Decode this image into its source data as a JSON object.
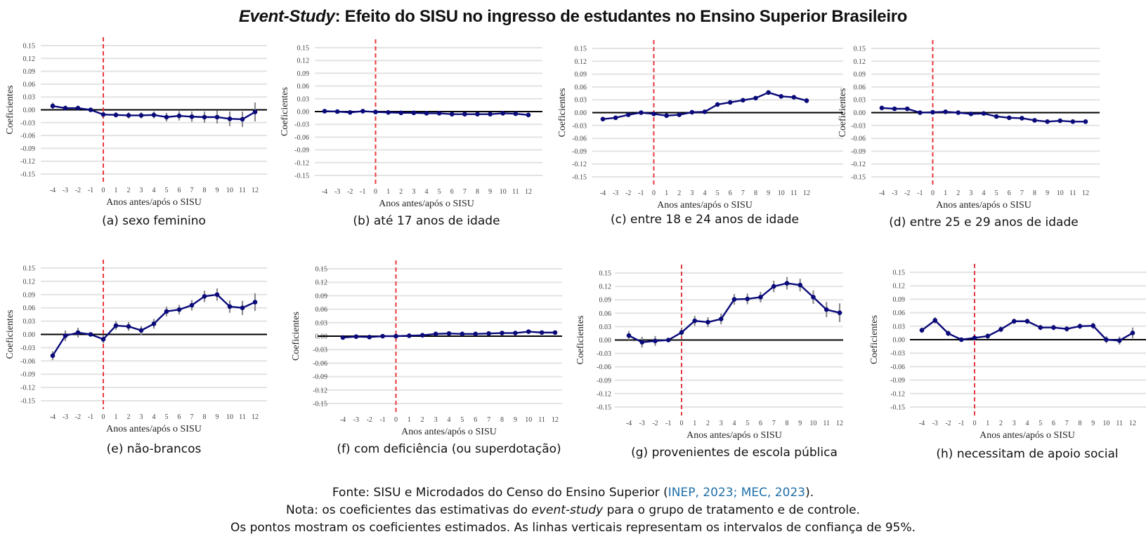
{
  "title": {
    "italic_part": "Event-Study",
    "rest": ": Efeito do SISU no ingresso de estudantes no Ensino Superior Brasileiro"
  },
  "footer": {
    "source_prefix": "Fonte: SISU e Microdados do Censo do Ensino Superior (",
    "source_cite": "INEP, 2023; MEC, 2023",
    "source_suffix": ").",
    "note_prefix": "Nota: os coeficientes das estimativas do ",
    "note_italic": "event-study",
    "note_suffix": " para o grupo de tratamento e de controle.",
    "note2": "Os pontos mostram os coeficientes estimados. As linhas verticais representam os intervalos de confiança de 95%."
  },
  "colors": {
    "series": "#0a0a7a",
    "ci": "#8c8c8c",
    "event_line": "#e8383d",
    "zero_line": "#000000",
    "grid": "#e3e3e3",
    "cite": "#1f6fa8"
  },
  "chart_data": [
    {
      "id": "a",
      "type": "line",
      "caption": "(a) sexo feminino",
      "xlabel": "Anos antes/após o SISU",
      "ylabel": "Coeficientes",
      "x": [
        -4,
        -3,
        -2,
        -1,
        0,
        1,
        2,
        3,
        4,
        5,
        6,
        7,
        8,
        9,
        10,
        11,
        12
      ],
      "y": [
        0.009,
        0.004,
        0.004,
        0.0,
        -0.011,
        -0.012,
        -0.013,
        -0.013,
        -0.012,
        -0.017,
        -0.014,
        -0.016,
        -0.017,
        -0.017,
        -0.021,
        -0.022,
        -0.005
      ],
      "ci": [
        0.008,
        0.006,
        0.006,
        0.003,
        0.006,
        0.006,
        0.007,
        0.007,
        0.008,
        0.01,
        0.011,
        0.012,
        0.013,
        0.015,
        0.017,
        0.018,
        0.022
      ],
      "yticks": [
        "0.15",
        "0.12",
        "0.09",
        "0.06",
        "0.03",
        "0.00",
        "-0.03",
        "-0.06",
        "-0.09",
        "-0.12",
        "-0.15"
      ],
      "ylim": [
        -0.15,
        0.15
      ],
      "event_x": 0,
      "grid": true
    },
    {
      "id": "b",
      "type": "line",
      "caption": "(b) até 17 anos de idade",
      "xlabel": "Anos antes/após o SISU",
      "ylabel": "Coeficientes",
      "x": [
        -4,
        -3,
        -2,
        -1,
        0,
        1,
        2,
        3,
        4,
        5,
        6,
        7,
        8,
        9,
        10,
        11,
        12
      ],
      "y": [
        0.001,
        0.0,
        -0.002,
        0.001,
        -0.001,
        -0.002,
        -0.003,
        -0.003,
        -0.004,
        -0.004,
        -0.006,
        -0.006,
        -0.006,
        -0.006,
        -0.004,
        -0.005,
        -0.008
      ],
      "ci": [
        0.002,
        0.002,
        0.002,
        0.002,
        0.002,
        0.002,
        0.002,
        0.002,
        0.002,
        0.002,
        0.002,
        0.002,
        0.002,
        0.002,
        0.002,
        0.002,
        0.003
      ],
      "yticks": [
        "0.15",
        "0.12",
        "0.09",
        "0.06",
        "0.03",
        "0.00",
        "-0.03",
        "-0.06",
        "-0.09",
        "-0.12",
        "-0.15"
      ],
      "ylim": [
        -0.15,
        0.15
      ],
      "event_x": 0,
      "grid": true
    },
    {
      "id": "c",
      "type": "line",
      "caption": "(c) entre 18 e 24 anos de idade",
      "xlabel": "Anos antes/após o SISU",
      "ylabel": "Coeficientes",
      "x": [
        -4,
        -3,
        -2,
        -1,
        0,
        1,
        2,
        3,
        4,
        5,
        6,
        7,
        8,
        9,
        10,
        11,
        12
      ],
      "y": [
        -0.015,
        -0.012,
        -0.005,
        0.0,
        -0.003,
        -0.007,
        -0.005,
        0.001,
        0.002,
        0.019,
        0.024,
        0.029,
        0.034,
        0.047,
        0.038,
        0.036,
        0.028
      ],
      "ci": [
        0.003,
        0.003,
        0.003,
        0.002,
        0.003,
        0.003,
        0.003,
        0.003,
        0.003,
        0.003,
        0.003,
        0.004,
        0.004,
        0.004,
        0.004,
        0.005,
        0.006
      ],
      "yticks": [
        "0.15",
        "0.12",
        "0.09",
        "0.06",
        "0.03",
        "0.00",
        "-0.03",
        "-0.06",
        "-0.09",
        "-0.12",
        "-0.15"
      ],
      "ylim": [
        -0.15,
        0.15
      ],
      "event_x": 0,
      "grid": true
    },
    {
      "id": "d",
      "type": "line",
      "caption": "(d) entre 25 e 29 anos de idade",
      "xlabel": "Anos antes/após o SISU",
      "ylabel": "Coeficientes",
      "x": [
        -4,
        -3,
        -2,
        -1,
        0,
        1,
        2,
        3,
        4,
        5,
        6,
        7,
        8,
        9,
        10,
        11,
        12
      ],
      "y": [
        0.011,
        0.009,
        0.009,
        0.0,
        0.001,
        0.002,
        0.0,
        -0.003,
        -0.002,
        -0.009,
        -0.012,
        -0.013,
        -0.018,
        -0.021,
        -0.019,
        -0.021,
        -0.021
      ],
      "ci": [
        0.002,
        0.002,
        0.002,
        0.002,
        0.002,
        0.002,
        0.002,
        0.002,
        0.002,
        0.002,
        0.002,
        0.002,
        0.002,
        0.002,
        0.002,
        0.002,
        0.003
      ],
      "yticks": [
        "0.15",
        "0.12",
        "0.09",
        "0.06",
        "0.03",
        "0.00",
        "-0.03",
        "-0.06",
        "-0.09",
        "-0.12",
        "-0.15"
      ],
      "ylim": [
        -0.15,
        0.15
      ],
      "event_x": 0,
      "grid": true
    },
    {
      "id": "e",
      "type": "line",
      "caption": "(e) não-brancos",
      "xlabel": "Anos antes/após o SISU",
      "ylabel": "Coeficientes",
      "x": [
        -4,
        -3,
        -2,
        -1,
        0,
        1,
        2,
        3,
        4,
        5,
        6,
        7,
        8,
        9,
        10,
        11,
        12
      ],
      "y": [
        -0.048,
        -0.003,
        0.004,
        0.0,
        -0.011,
        0.02,
        0.018,
        0.009,
        0.024,
        0.052,
        0.056,
        0.066,
        0.086,
        0.09,
        0.063,
        0.06,
        0.073
      ],
      "ci": [
        0.01,
        0.012,
        0.011,
        0.004,
        0.009,
        0.01,
        0.01,
        0.01,
        0.011,
        0.011,
        0.011,
        0.012,
        0.013,
        0.014,
        0.014,
        0.016,
        0.02
      ],
      "yticks": [
        "0.15",
        "0.12",
        "0.09",
        "0.06",
        "0.03",
        "0.00",
        "-0.03",
        "-0.06",
        "-0.09",
        "-0.12",
        "-0.15"
      ],
      "ylim": [
        -0.15,
        0.15
      ],
      "event_x": 0,
      "grid": true
    },
    {
      "id": "f",
      "type": "line",
      "caption": "(f) com deficiência (ou superdotação)",
      "xlabel": "Anos antes/após o SISU",
      "ylabel": "Coeficientes",
      "x": [
        -4,
        -3,
        -2,
        -1,
        0,
        1,
        2,
        3,
        4,
        5,
        6,
        7,
        8,
        9,
        10,
        11,
        12
      ],
      "y": [
        -0.003,
        -0.001,
        -0.002,
        0.0,
        0.0,
        0.001,
        0.002,
        0.005,
        0.006,
        0.005,
        0.005,
        0.006,
        0.007,
        0.007,
        0.01,
        0.008,
        0.008
      ],
      "ci": [
        0.001,
        0.001,
        0.001,
        0.001,
        0.001,
        0.001,
        0.001,
        0.001,
        0.001,
        0.001,
        0.001,
        0.001,
        0.001,
        0.001,
        0.001,
        0.001,
        0.001
      ],
      "yticks": [
        "0.15",
        "0.12",
        "0.09",
        "0.06",
        "0.03",
        "0.00",
        "-0.03",
        "-0.06",
        "-0.09",
        "-0.12",
        "-0.15"
      ],
      "ylim": [
        -0.15,
        0.15
      ],
      "event_x": 0,
      "grid": true
    },
    {
      "id": "g",
      "type": "line",
      "caption": "(g) provenientes de escola pública",
      "xlabel": "Anos antes/após o SISU",
      "ylabel": "Coeficientes",
      "x": [
        -4,
        -3,
        -2,
        -1,
        0,
        1,
        2,
        3,
        4,
        5,
        6,
        7,
        8,
        9,
        10,
        11,
        12
      ],
      "y": [
        0.01,
        -0.005,
        -0.002,
        0.0,
        0.017,
        0.043,
        0.04,
        0.047,
        0.091,
        0.092,
        0.096,
        0.12,
        0.127,
        0.123,
        0.096,
        0.068,
        0.061
      ],
      "ci": [
        0.01,
        0.012,
        0.011,
        0.004,
        0.009,
        0.011,
        0.011,
        0.012,
        0.012,
        0.012,
        0.012,
        0.013,
        0.014,
        0.014,
        0.015,
        0.017,
        0.021
      ],
      "yticks": [
        "0.15",
        "0.12",
        "0.09",
        "0.06",
        "0.03",
        "0.00",
        "-0.03",
        "-0.06",
        "-0.09",
        "-0.12",
        "-0.15"
      ],
      "ylim": [
        -0.15,
        0.15
      ],
      "event_x": 0,
      "grid": true
    },
    {
      "id": "h",
      "type": "line",
      "caption": "(h) necessitam de apoio social",
      "xlabel": "Anos antes/após o SISU",
      "ylabel": "Coeficientes",
      "x": [
        -4,
        -3,
        -2,
        -1,
        0,
        1,
        2,
        3,
        4,
        5,
        6,
        7,
        8,
        9,
        10,
        11,
        12
      ],
      "y": [
        0.021,
        0.043,
        0.014,
        0.0,
        0.004,
        0.008,
        0.023,
        0.041,
        0.041,
        0.027,
        0.027,
        0.024,
        0.03,
        0.031,
        0.0,
        -0.002,
        0.015
      ],
      "ci": [
        0.006,
        0.007,
        0.006,
        0.003,
        0.005,
        0.006,
        0.006,
        0.006,
        0.006,
        0.006,
        0.006,
        0.006,
        0.006,
        0.007,
        0.008,
        0.009,
        0.012
      ],
      "yticks": [
        "0.15",
        "0.12",
        "0.09",
        "0.06",
        "0.03",
        "0.00",
        "-0.03",
        "-0.06",
        "-0.09",
        "-0.12",
        "-0.15"
      ],
      "ylim": [
        -0.15,
        0.15
      ],
      "event_x": 0,
      "grid": true
    }
  ]
}
